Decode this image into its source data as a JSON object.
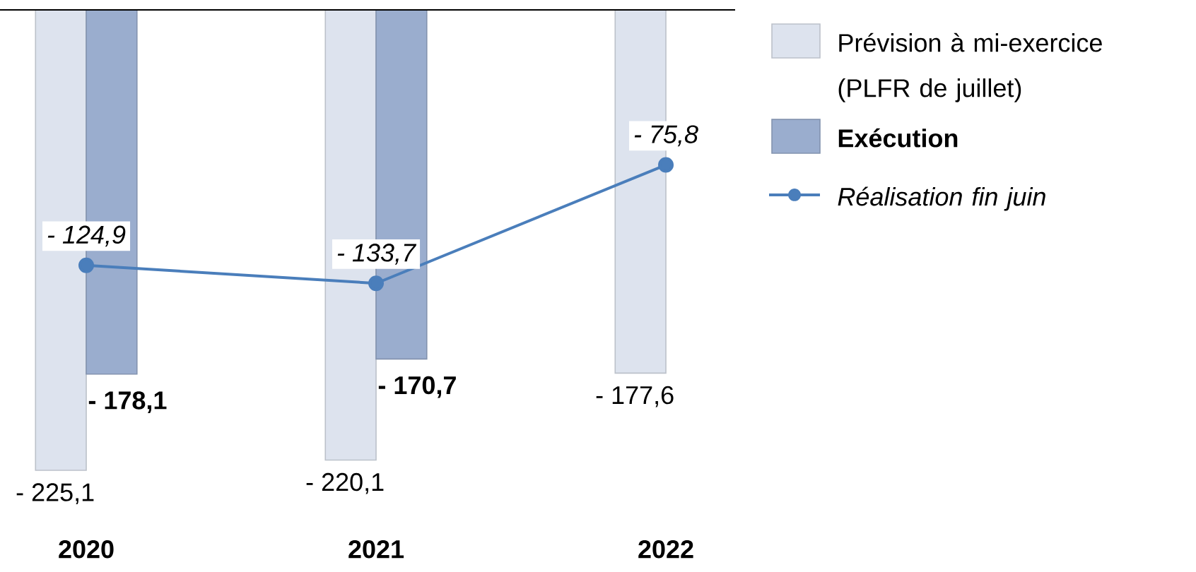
{
  "chart_data": {
    "type": "bar",
    "categories": [
      "2020",
      "2021",
      "2022"
    ],
    "tick_labels": "x",
    "legend": "right",
    "series": [
      {
        "name": "Prévision à mi-exercice (PLFR de juillet)",
        "color": "#dde3ee",
        "values": [
          -225.1,
          -220.1,
          -177.6
        ],
        "value_labels": [
          "- 225,1",
          "- 220,1",
          "- 177,6"
        ]
      },
      {
        "name": "Exécution",
        "color": "#9aadce",
        "values": [
          -178.1,
          -170.7,
          null
        ],
        "value_labels": [
          "- 178,1",
          "- 170,7",
          null
        ]
      },
      {
        "name": "Réalisation fin juin",
        "type": "line",
        "color": "#4a7ebb",
        "marker": "circle",
        "values": [
          -124.9,
          -133.7,
          -75.8
        ],
        "value_labels": [
          "- 124,9",
          "- 133,7",
          "- 75,8"
        ]
      }
    ]
  }
}
